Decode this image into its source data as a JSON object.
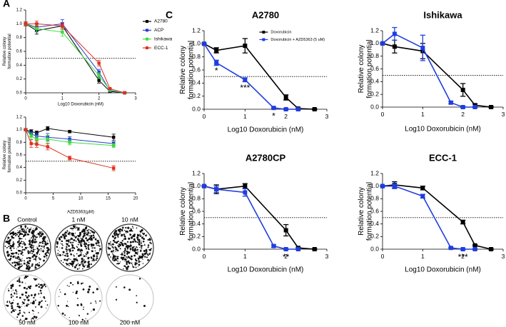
{
  "chart_data": [
    {
      "type": "line",
      "x_label": "Log10 Doxorubicin (nM)",
      "y_label": [
        "Relative colony",
        "formation potential"
      ],
      "xlim": [
        0,
        3
      ],
      "xticks": [
        0,
        1,
        2,
        3
      ],
      "ylim": [
        0,
        1.2
      ],
      "yticks": [
        {
          "value": 0,
          "label": "0.0"
        },
        0.2,
        0.4,
        0.6,
        0.8,
        {
          "value": 1,
          "label": "1.0"
        },
        1.2
      ],
      "threshold": 0.5,
      "legend": "right",
      "series": [
        {
          "name": "A2780",
          "color": "#000000",
          "x": [
            0,
            0.3,
            1,
            2,
            2.3,
            2.7
          ],
          "values": [
            1.0,
            0.9,
            0.97,
            0.18,
            0.02,
            0.0
          ],
          "errors": [
            0.03,
            0.05,
            0.05,
            0.04,
            0.01,
            0.01
          ]
        },
        {
          "name": "ACP",
          "color": "#2a3bd8",
          "x": [
            0,
            0.3,
            1,
            2,
            2.3,
            2.7
          ],
          "values": [
            1.0,
            0.95,
            1.0,
            0.3,
            0.03,
            0.0
          ],
          "errors": [
            0.03,
            0.06,
            0.06,
            0.04,
            0.01,
            0.01
          ]
        },
        {
          "name": "Ishikawa",
          "color": "#3ddc3d",
          "x": [
            0,
            0.3,
            1,
            2,
            2.3,
            2.7
          ],
          "values": [
            1.0,
            0.93,
            0.88,
            0.25,
            0.04,
            0.0
          ],
          "errors": [
            0.03,
            0.05,
            0.06,
            0.04,
            0.01,
            0.01
          ]
        },
        {
          "name": "ECC-1",
          "color": "#e0301e",
          "x": [
            0,
            0.3,
            1,
            2,
            2.3,
            2.7
          ],
          "values": [
            1.0,
            1.0,
            0.97,
            0.43,
            0.06,
            0.0
          ],
          "errors": [
            0.03,
            0.04,
            0.05,
            0.04,
            0.01,
            0.01
          ]
        }
      ]
    },
    {
      "type": "line",
      "x_label": "AZD5363(μM)",
      "y_label": [
        "Relative colony",
        "formation potential"
      ],
      "xlim": [
        0,
        20
      ],
      "xticks": [
        0,
        5,
        10,
        15,
        20
      ],
      "ylim": [
        0,
        1.2
      ],
      "yticks": [
        {
          "value": 0,
          "label": "0.0"
        },
        0.2,
        0.4,
        0.6,
        0.8,
        {
          "value": 1,
          "label": "1.0"
        },
        1.2
      ],
      "threshold": 0.5,
      "series": [
        {
          "color": "#000000",
          "x": [
            0,
            1,
            2,
            4,
            8,
            16
          ],
          "values": [
            1.0,
            0.97,
            0.95,
            1.02,
            0.97,
            0.88
          ],
          "errors": [
            0.02,
            0.03,
            0.03,
            0.03,
            0.02,
            0.05
          ]
        },
        {
          "color": "#2a3bd8",
          "x": [
            0,
            1,
            2,
            4,
            8,
            16
          ],
          "values": [
            1.0,
            0.93,
            0.9,
            0.88,
            0.85,
            0.78
          ],
          "errors": [
            0.02,
            0.04,
            0.05,
            0.06,
            0.04,
            0.03
          ]
        },
        {
          "color": "#3ddc3d",
          "x": [
            0,
            1,
            2,
            4,
            8,
            16
          ],
          "values": [
            1.0,
            0.9,
            0.85,
            0.85,
            0.8,
            0.75
          ],
          "errors": [
            0.02,
            0.05,
            0.05,
            0.06,
            0.04,
            0.03
          ]
        },
        {
          "color": "#e0301e",
          "x": [
            0,
            1,
            2,
            4,
            8,
            16
          ],
          "values": [
            1.0,
            0.78,
            0.77,
            0.73,
            0.55,
            0.39
          ],
          "errors": [
            0.02,
            0.06,
            0.05,
            0.05,
            0.03,
            0.04
          ]
        }
      ]
    },
    {
      "type": "line",
      "title": "A2780",
      "x_label": "Log10 Doxorubicin (nM)",
      "y_label": [
        "Relative colony",
        "formation potential"
      ],
      "xlim": [
        0,
        3
      ],
      "xticks": [
        0,
        1,
        2,
        3
      ],
      "ylim": [
        0,
        1.2
      ],
      "yticks": [
        {
          "value": 0,
          "label": "0.0"
        },
        0.2,
        0.4,
        0.6,
        0.8,
        {
          "value": 1,
          "label": "1.0"
        },
        1.2
      ],
      "threshold": 0.5,
      "legend": "upper right",
      "series": [
        {
          "name": "Doxorubicin",
          "color": "#000000",
          "x": [
            0,
            0.3,
            1,
            2,
            2.3,
            2.7
          ],
          "values": [
            1.0,
            0.9,
            0.97,
            0.18,
            0.01,
            0.0
          ],
          "errors": [
            0.01,
            0.04,
            0.11,
            0.04,
            0.01,
            0.01
          ]
        },
        {
          "name": "Doxorubicin + AZD5363 (5 uM)",
          "color": "#1f3de0",
          "x": [
            0,
            0.3,
            1,
            1.7,
            2,
            2.3
          ],
          "values": [
            1.0,
            0.71,
            0.45,
            0.02,
            0.0,
            0.0
          ],
          "errors": [
            0.01,
            0.04,
            0.03,
            0.01,
            0.01,
            0.01
          ],
          "annotations": [
            null,
            "*",
            "***",
            "*",
            null,
            null
          ]
        }
      ]
    },
    {
      "type": "line",
      "title": "Ishikawa",
      "x_label": "Log10 Doxorubicin (nM)",
      "y_label": [
        "Relative colony",
        "formation potential"
      ],
      "xlim": [
        0,
        3
      ],
      "xticks": [
        0,
        1,
        2,
        3
      ],
      "ylim": [
        0,
        1.2
      ],
      "yticks": [
        {
          "value": 0,
          "label": "0.0"
        },
        0.2,
        0.4,
        0.6,
        0.8,
        {
          "value": 1,
          "label": "1.0"
        },
        1.2
      ],
      "threshold": 0.5,
      "series": [
        {
          "color": "#000000",
          "x": [
            0,
            0.3,
            1,
            2,
            2.3,
            2.7
          ],
          "values": [
            1.0,
            0.95,
            0.88,
            0.27,
            0.03,
            0.0
          ],
          "errors": [
            0.01,
            0.1,
            0.12,
            0.1,
            0.02,
            0.01
          ]
        },
        {
          "color": "#1f3de0",
          "x": [
            0,
            0.3,
            1,
            1.7,
            2,
            2.3
          ],
          "values": [
            1.0,
            1.15,
            0.93,
            0.07,
            0.0,
            0.0
          ],
          "errors": [
            0.01,
            0.1,
            0.2,
            0.02,
            0.01,
            0.01
          ]
        }
      ]
    },
    {
      "type": "line",
      "title": "A2780CP",
      "x_label": "Log10 Doxorubicin (nM)",
      "y_label": [
        "Relative colony",
        "formation potential"
      ],
      "xlim": [
        0,
        3
      ],
      "xticks": [
        0,
        1,
        2,
        3
      ],
      "ylim": [
        0,
        1.2
      ],
      "yticks": [
        {
          "value": 0,
          "label": "0.0"
        },
        0.2,
        0.4,
        0.6,
        0.8,
        {
          "value": 1,
          "label": "1.0"
        },
        1.2
      ],
      "threshold": 0.5,
      "series": [
        {
          "color": "#000000",
          "x": [
            0,
            0.3,
            1,
            2,
            2.3,
            2.7
          ],
          "values": [
            1.0,
            0.95,
            1.0,
            0.3,
            0.02,
            0.0
          ],
          "errors": [
            0.01,
            0.07,
            0.04,
            0.09,
            0.01,
            0.01
          ]
        },
        {
          "color": "#1f3de0",
          "x": [
            0,
            0.3,
            1,
            1.7,
            2,
            2.3
          ],
          "values": [
            1.0,
            0.95,
            0.9,
            0.05,
            0.0,
            0.0
          ],
          "errors": [
            0.01,
            0.05,
            0.06,
            0.02,
            0.01,
            0.01
          ],
          "annotations": [
            null,
            null,
            null,
            null,
            "**",
            null
          ]
        }
      ]
    },
    {
      "type": "line",
      "title": "ECC-1",
      "x_label": "Log10 Doxorubicin (nM)",
      "y_label": [
        "Relative colony",
        "formation potential"
      ],
      "xlim": [
        0,
        3
      ],
      "xticks": [
        0,
        1,
        2,
        3
      ],
      "ylim": [
        0,
        1.2
      ],
      "yticks": [
        {
          "value": 0,
          "label": "0.0"
        },
        0.2,
        0.4,
        0.6,
        0.8,
        {
          "value": 1,
          "label": "1.0"
        },
        1.2
      ],
      "threshold": 0.5,
      "series": [
        {
          "color": "#000000",
          "x": [
            0,
            0.3,
            1,
            2,
            2.3,
            2.7
          ],
          "values": [
            1.0,
            1.02,
            0.97,
            0.43,
            0.06,
            0.0
          ],
          "errors": [
            0.01,
            0.05,
            0.03,
            0.03,
            0.01,
            0.01
          ]
        },
        {
          "color": "#1f3de0",
          "x": [
            0,
            0.3,
            1,
            1.7,
            2,
            2.3
          ],
          "values": [
            1.0,
            1.0,
            0.84,
            0.02,
            0.0,
            0.0
          ],
          "errors": [
            0.01,
            0.04,
            0.03,
            0.01,
            0.01,
            0.01
          ],
          "annotations": [
            null,
            null,
            null,
            null,
            "***",
            null
          ]
        }
      ]
    }
  ],
  "figure": {
    "panel_labels": [
      "A",
      "B",
      "C"
    ],
    "plates": [
      "Control",
      "1 nM",
      "10 nM",
      "50 nM",
      "100 nM",
      "200 nM"
    ]
  }
}
